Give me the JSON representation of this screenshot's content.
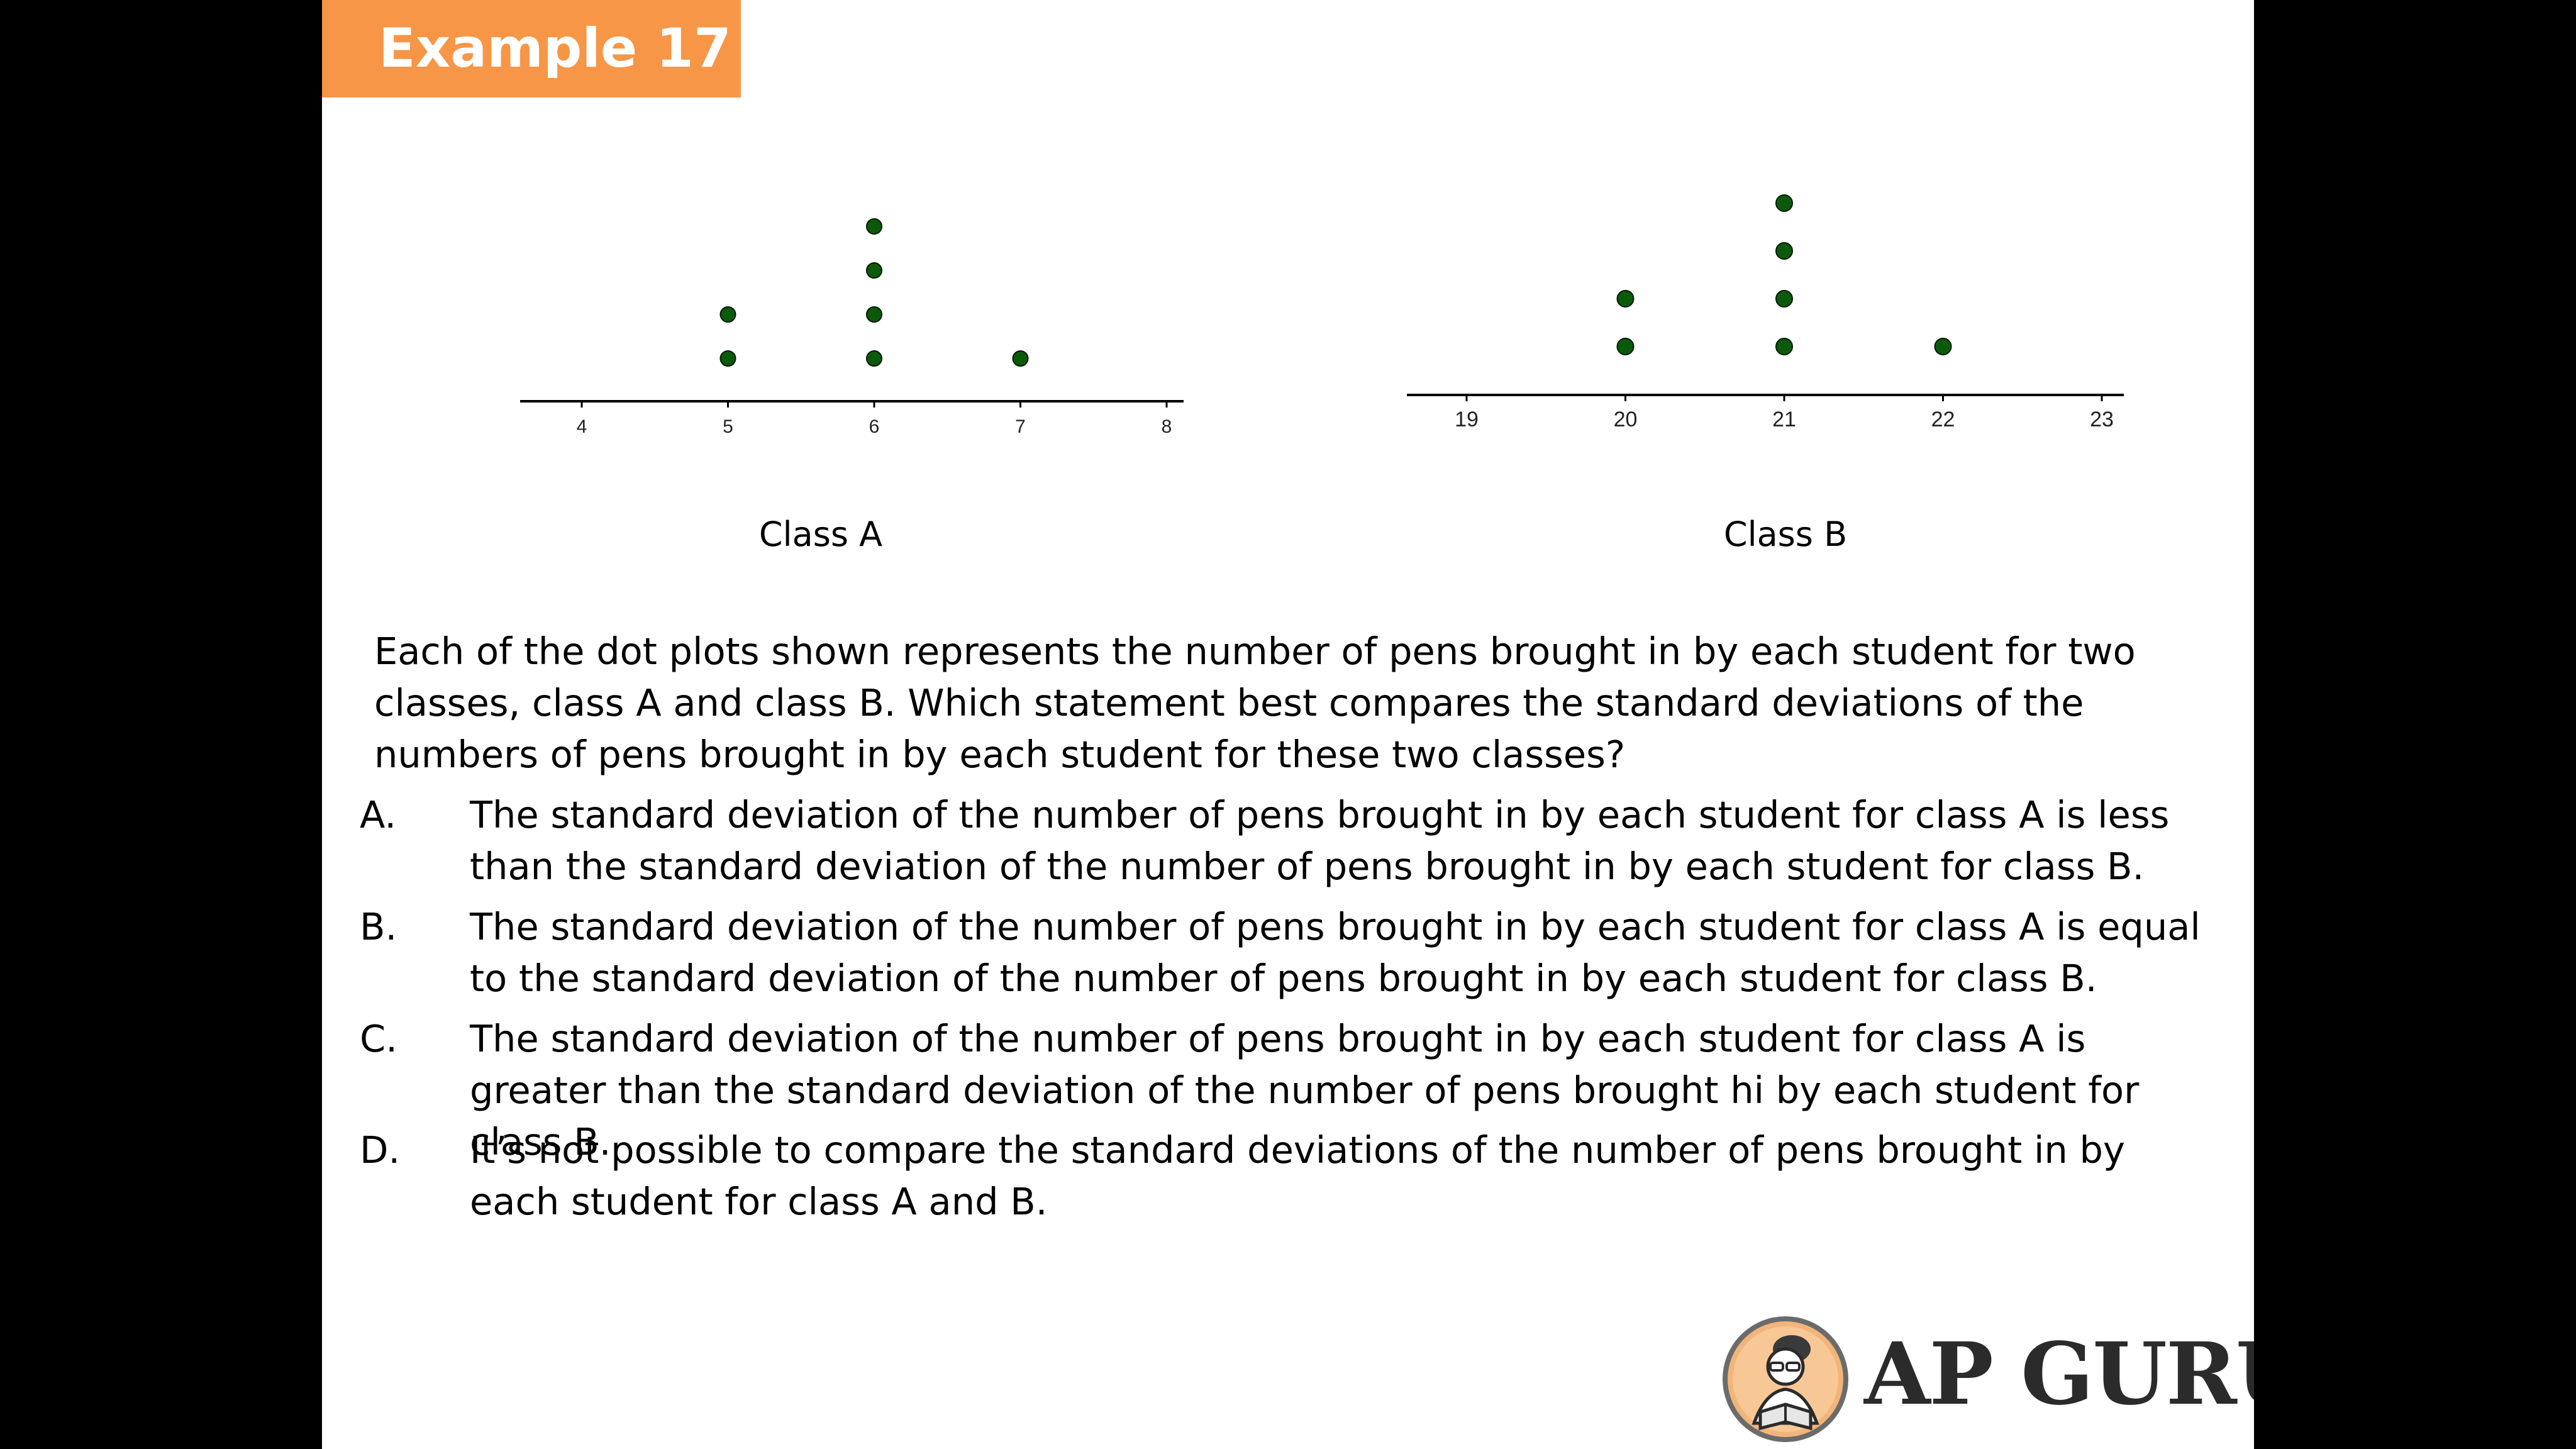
{
  "badge": {
    "label": "Example 17"
  },
  "chart_data": [
    {
      "type": "scatter",
      "subtype": "dot-plot",
      "caption": "Class A",
      "ticks": [
        "4",
        "5",
        "6",
        "7",
        "8"
      ],
      "xlim": [
        4,
        8
      ],
      "points": [
        {
          "value": 5,
          "count": 2
        },
        {
          "value": 6,
          "count": 4
        },
        {
          "value": 7,
          "count": 1
        }
      ],
      "dot_color": "#0b5a0b"
    },
    {
      "type": "scatter",
      "subtype": "dot-plot",
      "caption": "Class B",
      "ticks": [
        "19",
        "20",
        "21",
        "22",
        "23"
      ],
      "xlim": [
        19,
        23
      ],
      "points": [
        {
          "value": 20,
          "count": 2
        },
        {
          "value": 21,
          "count": 4
        },
        {
          "value": 22,
          "count": 1
        }
      ],
      "dot_color": "#0b5a0b"
    }
  ],
  "question": {
    "stem": "Each of the dot plots shown represents the number of pens brought in by each student for two classes, class A and class B. Which statement best compares the standard deviations of the numbers of pens brought in by each student for these two classes?",
    "options": [
      {
        "letter": "A.",
        "text": "The standard deviation of the number of pens brought in by each student for class A is less than the standard deviation of the number of pens brought in by each student for class B."
      },
      {
        "letter": "B.",
        "text": "The standard deviation of the number of pens brought in by each student for class A is equal to the standard deviation of the number of pens brought in by each student for class B."
      },
      {
        "letter": "C.",
        "text": "The standard deviation of the number of pens brought in by each student for class A is greater than the standard deviation of the number of pens brought hi by each student for class B."
      },
      {
        "letter": "D.",
        "text": "It’s not possible to compare the standard deviations of the number of pens brought in by each student for class A and B."
      }
    ]
  },
  "logo": {
    "text": "AP GURU",
    "icon": "reading-student-icon"
  }
}
